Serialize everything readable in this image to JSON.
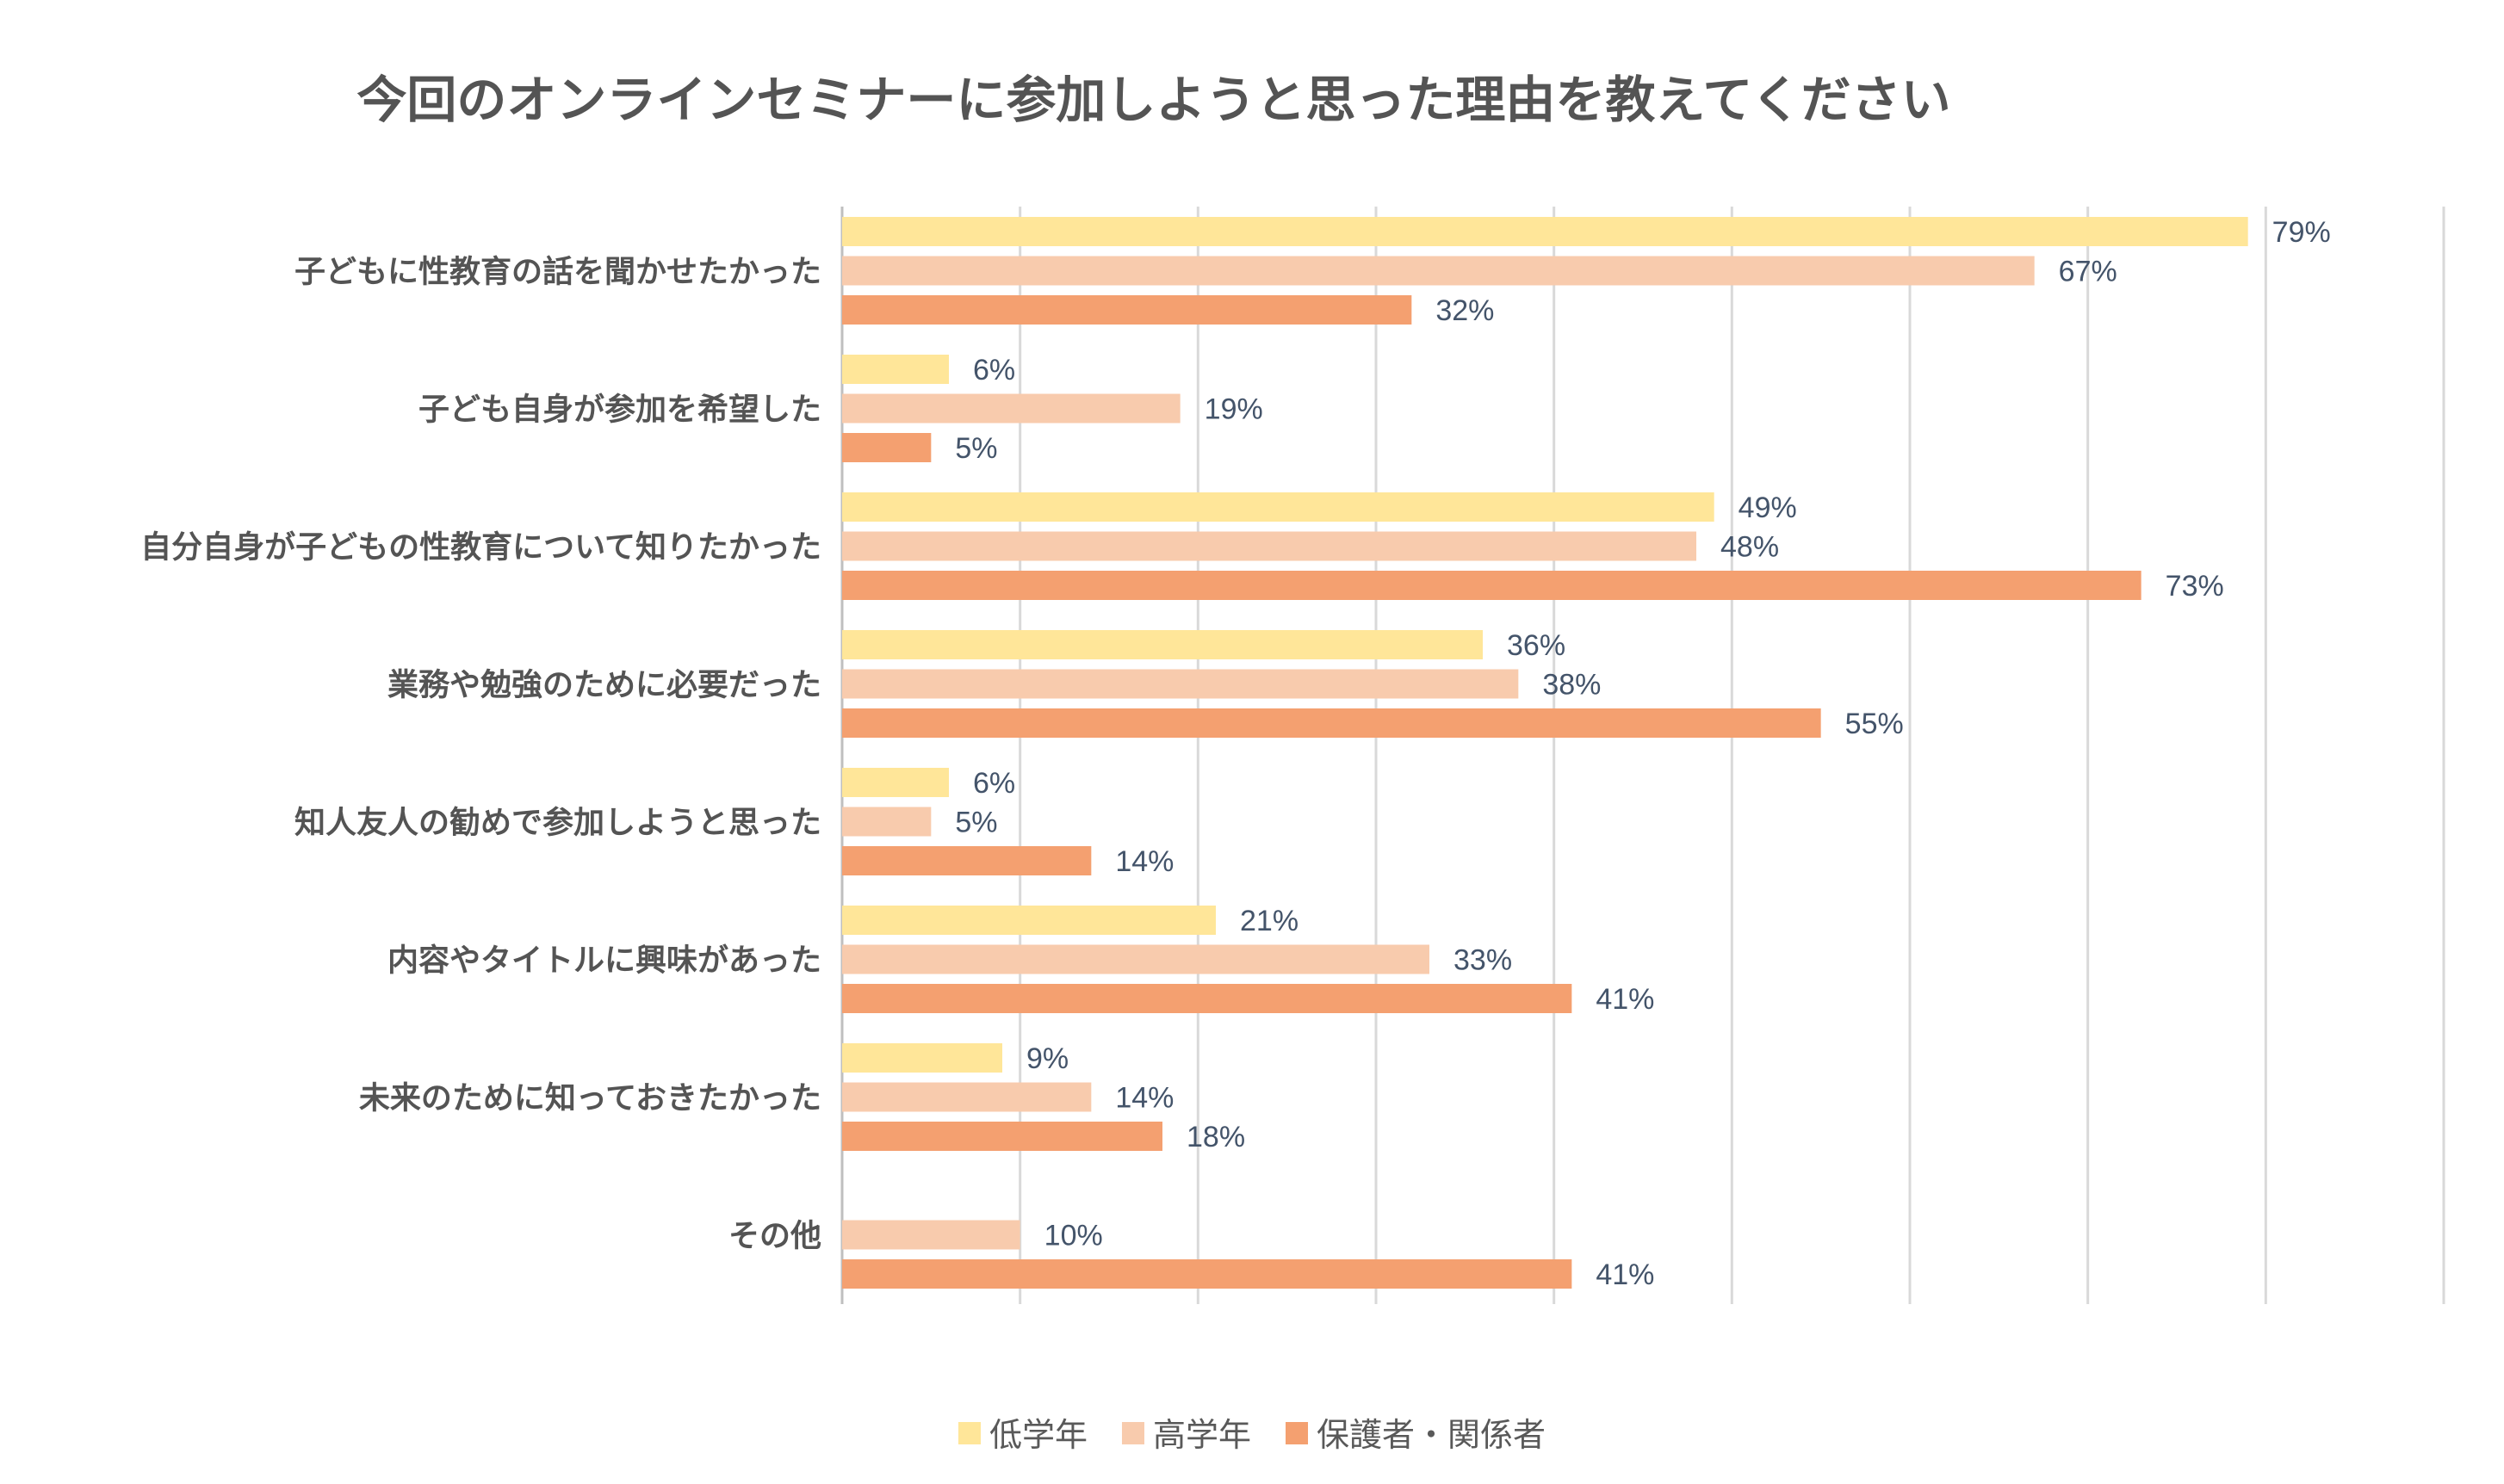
{
  "chart_data": {
    "type": "bar",
    "orientation": "horizontal",
    "title": "今回のオンラインセミナーに参加しようと思った理由を教えてください",
    "categories": [
      "子どもに性教育の話を聞かせたかった",
      "子ども自身が参加を希望した",
      "自分自身が子どもの性教育について知りたかった",
      "業務や勉強のために必要だった",
      "知人友人の勧めで参加しようと思った",
      "内容やタイトルに興味があった",
      "未来のために知っておきたかった",
      "その他"
    ],
    "series": [
      {
        "name": "低学年",
        "color": "#FFE699",
        "values": [
          79,
          6,
          49,
          36,
          6,
          21,
          9,
          null
        ],
        "labels": [
          "79%",
          "6%",
          "49%",
          "36%",
          "6%",
          "21%",
          "9%",
          null
        ]
      },
      {
        "name": "高学年",
        "color": "#F8CBAD",
        "values": [
          67,
          19,
          48,
          38,
          5,
          33,
          14,
          10
        ],
        "labels": [
          "67%",
          "19%",
          "48%",
          "38%",
          "5%",
          "33%",
          "14%",
          "10%"
        ]
      },
      {
        "name": "保護者・関係者",
        "color": "#F4A070",
        "values": [
          32,
          5,
          73,
          55,
          14,
          41,
          18,
          41
        ],
        "labels": [
          "32%",
          "5%",
          "73%",
          "55%",
          "14%",
          "41%",
          "18%",
          "41%"
        ]
      }
    ],
    "xlim": [
      0,
      90
    ],
    "grid_step": 10,
    "grid": true,
    "xlabel": "",
    "ylabel": "",
    "legend_position": "bottom"
  }
}
